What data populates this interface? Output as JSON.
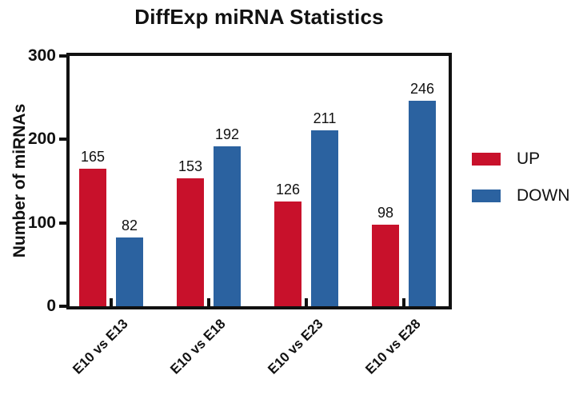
{
  "chart_data": {
    "type": "bar",
    "title": "DiffExp miRNA Statistics",
    "xlabel": "",
    "ylabel": "Number of miRNAs",
    "categories": [
      "E10 vs E13",
      "E10 vs E18",
      "E10 vs E23",
      "E10 vs E28"
    ],
    "series": [
      {
        "name": "UP",
        "color": "#C8112B",
        "values": [
          165,
          153,
          126,
          98
        ]
      },
      {
        "name": "DOWN",
        "color": "#2B62A0",
        "values": [
          82,
          192,
          211,
          246
        ]
      }
    ],
    "ylim": [
      0,
      300
    ],
    "yticks": [
      0,
      100,
      200,
      300
    ],
    "grid": false,
    "legend_position": "right",
    "frame": true,
    "axis_color": "#111111"
  }
}
